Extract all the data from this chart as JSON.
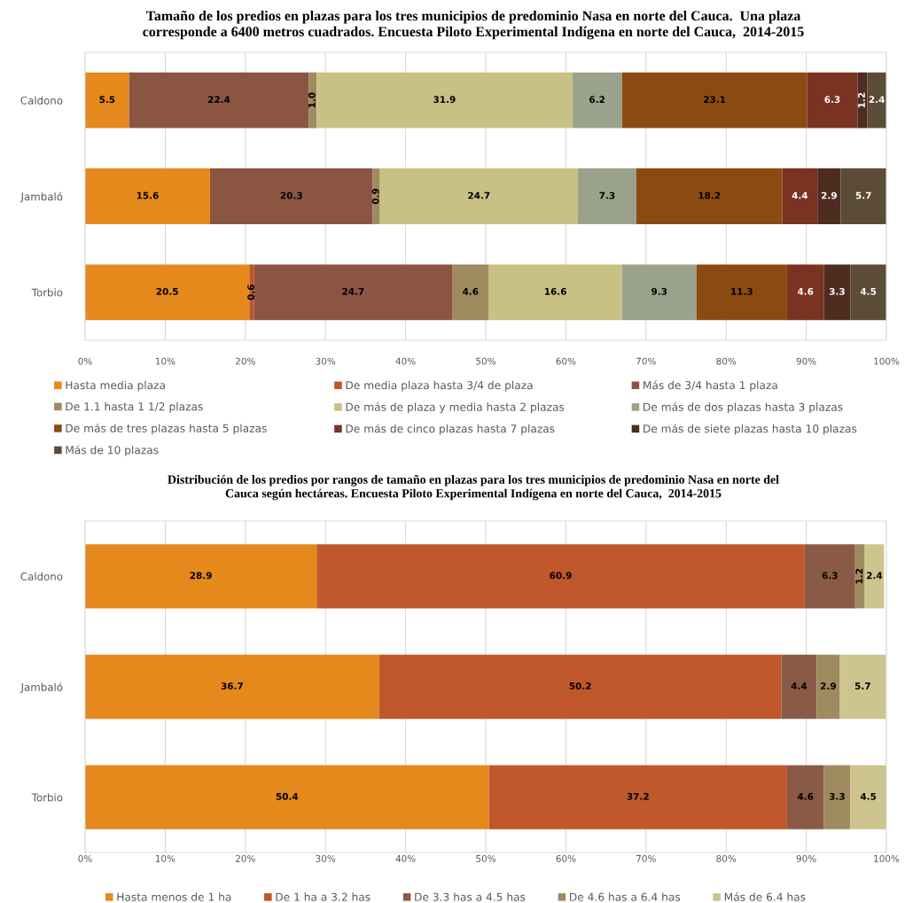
{
  "chart_data": [
    {
      "type": "bar",
      "orientation": "horizontal",
      "stacked": true,
      "title": "Tamaño de los predios en plazas para los tres municipios de predominio Nasa en norte del Cauca.  Una plaza\ncorresponde a 6400 metros cuadrados. Encuesta Piloto Experimental Indígena en norte del Cauca,  2014-2015",
      "categories": [
        "Caldono",
        "Jambaló",
        "Torbio"
      ],
      "series": [
        {
          "name": "Hasta media plaza",
          "color": "#e5891d",
          "values": [
            5.5,
            15.6,
            20.5
          ],
          "value_labels": [
            "5.5",
            "15.6",
            "20.5"
          ]
        },
        {
          "name": "De media plaza hasta 3/4 de plaza",
          "color": "#c0552b",
          "values": [
            null,
            null,
            0.6
          ],
          "value_labels": [
            null,
            null,
            "0.6"
          ]
        },
        {
          "name": "Más de 3/4 hasta 1 plaza",
          "color": "#8b5542",
          "values": [
            22.4,
            20.3,
            24.7
          ],
          "value_labels": [
            "22.4",
            "20.3",
            "24.7"
          ]
        },
        {
          "name": "De 1.1 hasta 1 1/2 plazas",
          "color": "#a08a5f",
          "values": [
            1.0,
            0.9,
            4.6
          ],
          "value_labels": [
            "1.0",
            "0.9",
            "4.6"
          ]
        },
        {
          "name": "De más de plaza y media hasta 2 plazas",
          "color": "#c8c183",
          "values": [
            31.9,
            24.7,
            16.6
          ],
          "value_labels": [
            "31.9",
            "24.7",
            "16.6"
          ]
        },
        {
          "name": "De más de dos plazas hasta 3 plazas",
          "color": "#9aa28b",
          "values": [
            6.2,
            7.3,
            9.3
          ],
          "value_labels": [
            "6.2",
            "7.3",
            "9.3"
          ]
        },
        {
          "name": "De más de tres plazas hasta 5 plazas",
          "color": "#8b4b10",
          "values": [
            23.1,
            18.2,
            11.3
          ],
          "value_labels": [
            "23.1",
            "18.2",
            "11.3"
          ]
        },
        {
          "name": "De más de cinco plazas hasta 7 plazas",
          "color": "#7a3321",
          "values": [
            6.3,
            4.4,
            4.6
          ],
          "value_labels": [
            "6.3",
            "4.4",
            "4.6"
          ]
        },
        {
          "name": "De más de siete plazas hasta 10 plazas",
          "color": "#4e2c20",
          "values": [
            1.2,
            2.9,
            3.3
          ],
          "value_labels": [
            "1.2",
            "2.9",
            "3.3"
          ]
        },
        {
          "name": "Más de 10 plazas",
          "color": "#5b4b37",
          "values": [
            2.4,
            5.7,
            4.5
          ],
          "value_labels": [
            "2.4",
            "5.7",
            "4.5"
          ]
        }
      ],
      "xlim": [
        0,
        100
      ],
      "xticks": [
        {
          "value": 0,
          "label": "0%"
        },
        {
          "value": 10,
          "label": "10%"
        },
        {
          "value": 20,
          "label": "20%"
        },
        {
          "value": 30,
          "label": "30%"
        },
        {
          "value": 40,
          "label": "40%"
        },
        {
          "value": 50,
          "label": "50%"
        },
        {
          "value": 60,
          "label": "60%"
        },
        {
          "value": 70,
          "label": "70%"
        },
        {
          "value": 80,
          "label": "80%"
        },
        {
          "value": 90,
          "label": "90%"
        },
        {
          "value": 100,
          "label": "100%"
        }
      ],
      "grid": "x",
      "legend": "bottom"
    },
    {
      "type": "bar",
      "orientation": "horizontal",
      "stacked": true,
      "title": "Distribución de los predios por rangos de tamaño en plazas para los tres municipios de predominio Nasa en norte del\nCauca según hectáreas. Encuesta Piloto Experimental Indígena en norte del Cauca,  2014-2015",
      "categories": [
        "Caldono",
        "Jambaló",
        "Torbio"
      ],
      "series": [
        {
          "name": "Hasta menos de 1 ha",
          "color": "#e5891c",
          "values": [
            28.9,
            36.7,
            50.4
          ],
          "value_labels": [
            "28.9",
            "36.7",
            "50.4"
          ]
        },
        {
          "name": "De 1 ha a 3.2 has",
          "color": "#c0582b",
          "values": [
            60.9,
            50.2,
            37.2
          ],
          "value_labels": [
            "60.9",
            "50.2",
            "37.2"
          ]
        },
        {
          "name": "De 3.3 has a 4.5 has",
          "color": "#8b5a46",
          "values": [
            6.3,
            4.4,
            4.6
          ],
          "value_labels": [
            "6.3",
            "4.4",
            "4.6"
          ]
        },
        {
          "name": "De 4.6 has a 6.4 has",
          "color": "#a08a5f",
          "values": [
            1.2,
            2.9,
            3.3
          ],
          "value_labels": [
            "1.2",
            "2.9",
            "3.3"
          ]
        },
        {
          "name": "Más de 6.4 has",
          "color": "#cdc48e",
          "values": [
            2.4,
            5.7,
            4.5
          ],
          "value_labels": [
            "2.4",
            "5.7",
            "4.5"
          ]
        }
      ],
      "xlim": [
        0,
        100
      ],
      "xticks": [
        {
          "value": 0,
          "label": "0%"
        },
        {
          "value": 10,
          "label": "10%"
        },
        {
          "value": 20,
          "label": "20%"
        },
        {
          "value": 30,
          "label": "30%"
        },
        {
          "value": 40,
          "label": "40%"
        },
        {
          "value": 50,
          "label": "50%"
        },
        {
          "value": 60,
          "label": "60%"
        },
        {
          "value": 70,
          "label": "70%"
        },
        {
          "value": 80,
          "label": "80%"
        },
        {
          "value": 90,
          "label": "90%"
        },
        {
          "value": 100,
          "label": "100%"
        }
      ],
      "grid": "x",
      "legend": "bottom"
    }
  ]
}
